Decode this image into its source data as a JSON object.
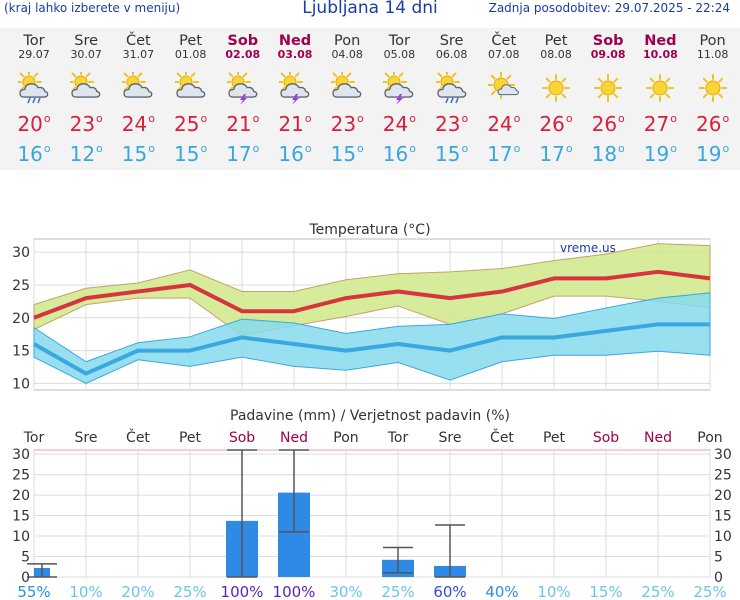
{
  "header": {
    "hint": "(kraj lahko izberete v meniju)",
    "title": "Ljubljana 14 dni",
    "updated": "Zadnja posodobitev: 29.07.2025 - 22:24"
  },
  "days": [
    {
      "name": "Tor",
      "date": "29.07",
      "weekend": false,
      "icon": "sun-cloud-rain-icon",
      "tmax": "20",
      "tmin": "16"
    },
    {
      "name": "Sre",
      "date": "30.07",
      "weekend": false,
      "icon": "sun-cloud-icon",
      "tmax": "23",
      "tmin": "12"
    },
    {
      "name": "Čet",
      "date": "31.07",
      "weekend": false,
      "icon": "sun-cloud-icon",
      "tmax": "24",
      "tmin": "15"
    },
    {
      "name": "Pet",
      "date": "01.08",
      "weekend": false,
      "icon": "sun-cloud-icon",
      "tmax": "25",
      "tmin": "15"
    },
    {
      "name": "Sob",
      "date": "02.08",
      "weekend": true,
      "icon": "sun-cloud-storm-icon",
      "tmax": "21",
      "tmin": "17"
    },
    {
      "name": "Ned",
      "date": "03.08",
      "weekend": true,
      "icon": "sun-cloud-storm-icon",
      "tmax": "21",
      "tmin": "16"
    },
    {
      "name": "Pon",
      "date": "04.08",
      "weekend": false,
      "icon": "sun-cloud-icon",
      "tmax": "23",
      "tmin": "15"
    },
    {
      "name": "Tor",
      "date": "05.08",
      "weekend": false,
      "icon": "sun-cloud-storm-icon",
      "tmax": "24",
      "tmin": "16"
    },
    {
      "name": "Sre",
      "date": "06.08",
      "weekend": false,
      "icon": "sun-cloud-rain-icon",
      "tmax": "23",
      "tmin": "15"
    },
    {
      "name": "Čet",
      "date": "07.08",
      "weekend": false,
      "icon": "sun-small-cloud-icon",
      "tmax": "24",
      "tmin": "17"
    },
    {
      "name": "Pet",
      "date": "08.08",
      "weekend": false,
      "icon": "sun-icon",
      "tmax": "26",
      "tmin": "17"
    },
    {
      "name": "Sob",
      "date": "09.08",
      "weekend": true,
      "icon": "sun-icon",
      "tmax": "26",
      "tmin": "18"
    },
    {
      "name": "Ned",
      "date": "10.08",
      "weekend": true,
      "icon": "sun-icon",
      "tmax": "27",
      "tmin": "19"
    },
    {
      "name": "Pon",
      "date": "11.08",
      "weekend": false,
      "icon": "sun-icon",
      "tmax": "26",
      "tmin": "19"
    }
  ],
  "chart_data": [
    {
      "type": "line",
      "title": "Temperatura (°C)",
      "watermark": "vreme.us",
      "categories": [
        "29.07",
        "30.07",
        "31.07",
        "01.08",
        "02.08",
        "03.08",
        "04.08",
        "05.08",
        "06.08",
        "07.08",
        "08.08",
        "09.08",
        "10.08",
        "11.08"
      ],
      "ylim": [
        9,
        32
      ],
      "yticks": [
        10,
        15,
        20,
        25,
        30
      ],
      "grid": true,
      "series": [
        {
          "color": "#d8343f",
          "values": [
            20,
            23,
            24,
            25,
            21,
            21,
            23,
            24,
            23,
            24,
            26,
            26,
            27,
            26
          ]
        },
        {
          "color": "#3aa7e0",
          "values": [
            16,
            11.5,
            15,
            15,
            17,
            16,
            15,
            16,
            15,
            17,
            17,
            18,
            19,
            19
          ]
        }
      ],
      "bands": [
        {
          "color": "#cfe98a",
          "upper": [
            22,
            24.5,
            25.3,
            27.3,
            24,
            24,
            25.8,
            26.7,
            27,
            27.5,
            28.7,
            29.7,
            31.3,
            31
          ],
          "lower": [
            18.2,
            22,
            23,
            23,
            17.3,
            18.8,
            20.2,
            21.8,
            19,
            20.6,
            23.3,
            23.3,
            22.5,
            21.5
          ]
        },
        {
          "color": "#86dbec",
          "upper": [
            18.5,
            13.3,
            16.2,
            17.1,
            19.8,
            19.2,
            17.6,
            18.7,
            19,
            20.6,
            19.9,
            21.5,
            23,
            23.8
          ],
          "lower": [
            14,
            10,
            13.6,
            12.6,
            14,
            12.6,
            12,
            13.2,
            10.5,
            13.3,
            14.3,
            14.3,
            14.9,
            14.3
          ]
        }
      ]
    },
    {
      "type": "bar",
      "title": "Padavine (mm) / Verjetnost padavin (%)",
      "categories": [
        "Tor",
        "Sre",
        "Čet",
        "Pet",
        "Sob",
        "Ned",
        "Pon",
        "Tor",
        "Sre",
        "Čet",
        "Pet",
        "Sob",
        "Ned",
        "Pon"
      ],
      "weekend": [
        false,
        false,
        false,
        false,
        true,
        true,
        false,
        false,
        false,
        false,
        false,
        true,
        true,
        false
      ],
      "ylim": [
        0,
        31
      ],
      "yticks": [
        0,
        5,
        10,
        15,
        20,
        25,
        30
      ],
      "values": [
        2.2,
        0,
        0,
        0,
        13.7,
        20.6,
        0,
        4.2,
        2.7,
        0,
        0,
        0,
        0,
        0
      ],
      "error_high": [
        3.2,
        null,
        null,
        null,
        31,
        31,
        null,
        7.2,
        12.7,
        null,
        null,
        null,
        null,
        null
      ],
      "error_low": [
        0,
        null,
        null,
        null,
        0,
        11,
        null,
        1,
        0,
        null,
        null,
        null,
        null,
        null
      ],
      "probability": [
        "55%",
        "10%",
        "20%",
        "25%",
        "100%",
        "100%",
        "30%",
        "25%",
        "60%",
        "40%",
        "10%",
        "15%",
        "25%",
        "25%"
      ],
      "bar_color": "#2f8ae6"
    }
  ]
}
